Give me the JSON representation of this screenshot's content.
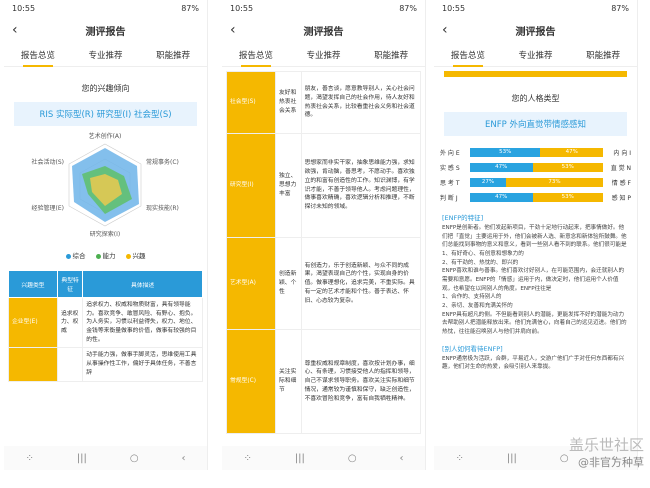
{
  "phone1": {
    "status": {
      "time": "10:55",
      "battery": "87%"
    },
    "title": "测评报告",
    "tabs": [
      "报告总览",
      "专业推荐",
      "职能推荐"
    ],
    "section_title": "您的兴趣倾向",
    "banner": "RIS 实际型(R) 研究型(I) 社会型(S)",
    "radar_labels": [
      "艺术创作(A)",
      "常规事务(C)",
      "现实技能(R)",
      "研究探索(I)",
      "经验管理(E)",
      "社会活动(S)"
    ],
    "legend": [
      "综合",
      "能力",
      "兴趣"
    ],
    "legend_colors": [
      "#2a9ad8",
      "#4caf50",
      "#f5b800"
    ],
    "table_head": [
      "兴趣类型",
      "典型特征",
      "具体描述"
    ],
    "rows": [
      {
        "type": "企业型(E)",
        "feature": "追求权力、权威",
        "desc": "追求权力、权威和物质财富，具有领导能力。喜欢竞争、敢冒风险、有野心、抱负。为人务实，习惯以利益得失，权力、地位、金钱等来衡量做事的价值，做事有较强的目的性。"
      },
      {
        "type": "",
        "feature": "",
        "desc": "动手能力强，做事手脚灵活，思维使用工具从事操作性工作，偏好于具体任务，不善言辞"
      }
    ]
  },
  "phone2": {
    "status": {
      "time": "10:55",
      "battery": "87%"
    },
    "title": "测评报告",
    "tabs": [
      "报告总览",
      "专业推荐",
      "职能推荐"
    ],
    "rows": [
      {
        "type": "社会型(S)",
        "feature": "友好和热衷社会关系",
        "desc": "朋友，善言谈，愿意教导别人，关心社会问题，渴望发挥自己的社会作用，待人友好和热衷社会关系，比较看重社会义务和社会道德。"
      },
      {
        "type": "研究型(I)",
        "feature": "独立、思想力丰富",
        "desc": "思想家而非实干家，抽象思维能力强，求知欲强，肯动脑，善思考，不愿动手。喜欢独立的和富有创造性的工作。知识渊博，有学识才能，不善于领导他人。考虑问题理性，做事喜欢精确，喜欢逻辑分析和推理，不断探讨未知的领域。"
      },
      {
        "type": "艺术型(A)",
        "feature": "创造新颖、个性",
        "desc": "有创造力，乐于创造新颖、与众不同的成果，渴望表现自己的个性，实现自身的价值。做事理想化，追求完美，不重实际。具有一定的艺术才能和个性。善于表达、怀旧、心态较为复杂。"
      },
      {
        "type": "常规型(C)",
        "feature": "关注实际和细节",
        "desc": "尊重权威和规章制度，喜欢按计划办事，细心、有条理，习惯接受他人的指挥和领导，自己不谋求领导职务。喜欢关注实际和细节情况，通常较为谨慎和保守，缺乏创造性，不喜欢冒险和竞争，富有自我牺牲精神。"
      }
    ]
  },
  "phone3": {
    "status": {
      "time": "10:55",
      "battery": "87%"
    },
    "title": "测评报告",
    "tabs": [
      "报告总览",
      "专业推荐",
      "职能推荐"
    ],
    "section_title": "您的人格类型",
    "banner": "ENFP 外向直觉带情感感知",
    "dims": [
      {
        "left": "外 向 E",
        "right": "内 向 I",
        "a": 53,
        "b": 47
      },
      {
        "left": "实 感 S",
        "right": "直 觉 N",
        "a": 47,
        "b": 53
      },
      {
        "left": "思 考 T",
        "right": "情 感 F",
        "a": 27,
        "b": 73
      },
      {
        "left": "判 断 J",
        "right": "感 知 P",
        "a": 47,
        "b": 53
      }
    ],
    "dims_fmt": "%",
    "feature_title": "[ENFP的特征]",
    "feature_text": "ENFP是创新者。他们发起新项目，干劲十足地行动起来，把事情做好。他们把「直觉」主要运用于外，他们会被新人选、新意念和新体验所鼓舞。他们总能找到事物的意义和意义，看到一些别人看不到的联系。他们很可能是",
    "points": [
      "1、有好奇心、有创意和想象力的",
      "2、有干劲的、热忱的、即兴的"
    ],
    "para2": "ENFP喜欢和谁与善事。他们喜欢讨好别人，在可能范围内，会迁就别人的需要和意愿。ENFP的「情感」运用于内，做决定时，他们运用个人价值观，也希望在以网别人的角度。ENFP往往是",
    "points2": [
      "1、合作的、支持别人的",
      "2、亲切、友善和充满关怀的"
    ],
    "para3": "ENFP具有超凡的侧。不但能看到别人的潜能，更能发挥不好的潜能为动力去帮助别人把潜能释放出来。他们充满信心，向着自己的远见迈进。他们的热忱，往往能召唤别人与他们并肩向前。",
    "other_title": "[别人如何看待ENFP]",
    "other_text": "ENFP通常极为活跃，合群，平易近人，交游广他们广手对任何东西都有兴趣，他们对生命的热爱，会吸引别人来靠拢。"
  },
  "watermark": {
    "line1": "盖乐世社区",
    "line2": "@非官方种草"
  }
}
